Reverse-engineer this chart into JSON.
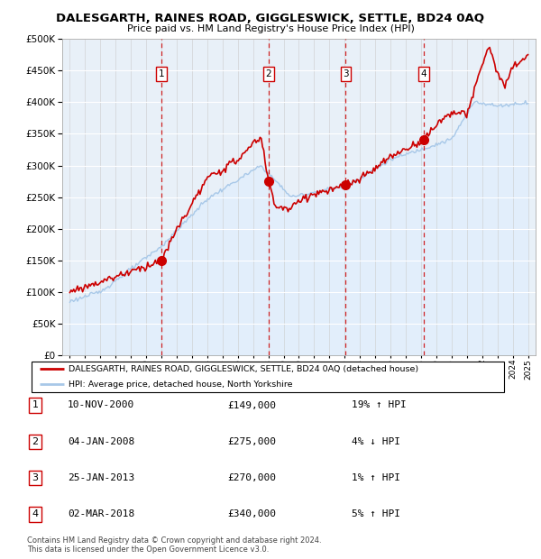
{
  "title": "DALESGARTH, RAINES ROAD, GIGGLESWICK, SETTLE, BD24 0AQ",
  "subtitle": "Price paid vs. HM Land Registry's House Price Index (HPI)",
  "legend_line1": "DALESGARTH, RAINES ROAD, GIGGLESWICK, SETTLE, BD24 0AQ (detached house)",
  "legend_line2": "HPI: Average price, detached house, North Yorkshire",
  "footer1": "Contains HM Land Registry data © Crown copyright and database right 2024.",
  "footer2": "This data is licensed under the Open Government Licence v3.0.",
  "sales": [
    {
      "num": 1,
      "date": "10-NOV-2000",
      "price": 149000,
      "hpi_rel": "19% ↑ HPI",
      "year": 2001.0
    },
    {
      "num": 2,
      "date": "04-JAN-2008",
      "price": 275000,
      "hpi_rel": "4% ↓ HPI",
      "year": 2008.0
    },
    {
      "num": 3,
      "date": "25-JAN-2013",
      "price": 270000,
      "hpi_rel": "1% ↑ HPI",
      "year": 2013.07
    },
    {
      "num": 4,
      "date": "02-MAR-2018",
      "price": 340000,
      "hpi_rel": "5% ↑ HPI",
      "year": 2018.17
    }
  ],
  "hpi_color": "#a8c8e8",
  "sale_color": "#cc0000",
  "vline_color": "#cc0000",
  "fill_color": "#ddeeff",
  "background_color": "#e8f0f8",
  "ylim": [
    0,
    500000
  ],
  "yticks": [
    0,
    50000,
    100000,
    150000,
    200000,
    250000,
    300000,
    350000,
    400000,
    450000,
    500000
  ],
  "xlim_start": 1994.5,
  "xlim_end": 2025.5
}
